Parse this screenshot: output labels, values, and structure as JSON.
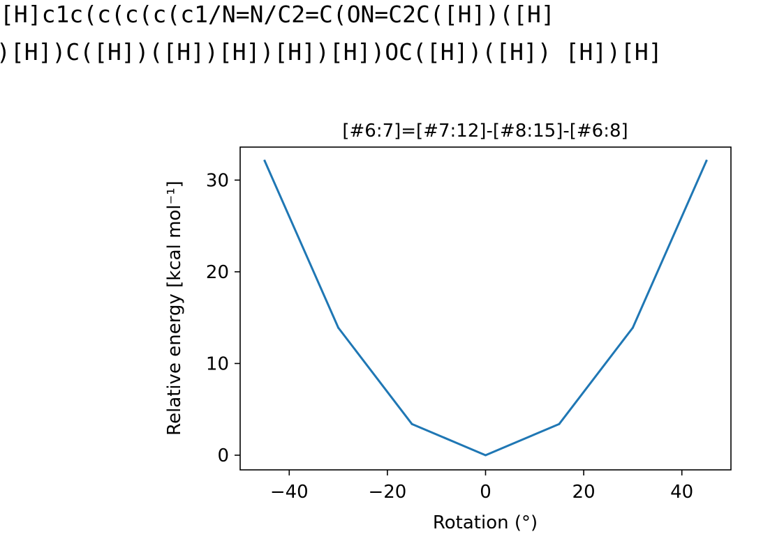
{
  "header": {
    "smiles_line_1": "[H]c1c(c(c(c(c1/N=N/C2=C(ON=C2C([H])([H]",
    "smiles_line_2": ")[H])C([H])([H])[H])[H])[H])OC([H])([H]) [H])[H]"
  },
  "chart_data": {
    "type": "line",
    "title": "[#6:7]=[#7:12]-[#8:15]-[#6:8]",
    "xlabel": "Rotation (°)",
    "ylabel": "Relative energy [kcal mol⁻¹]",
    "xlim": [
      -50,
      50
    ],
    "ylim": [
      -1.6,
      33.6
    ],
    "xticks": [
      -40,
      -20,
      0,
      20,
      40
    ],
    "xtick_labels": [
      "−40",
      "−20",
      "0",
      "20",
      "40"
    ],
    "yticks": [
      0,
      10,
      20,
      30
    ],
    "ytick_labels": [
      "0",
      "10",
      "20",
      "30"
    ],
    "grid": false,
    "series": [
      {
        "color": "#1f77b4",
        "x": [
          -45,
          -30,
          -15,
          0,
          15,
          30,
          45
        ],
        "y": [
          32.1,
          13.9,
          3.4,
          0.0,
          3.4,
          13.9,
          32.1
        ]
      }
    ]
  }
}
